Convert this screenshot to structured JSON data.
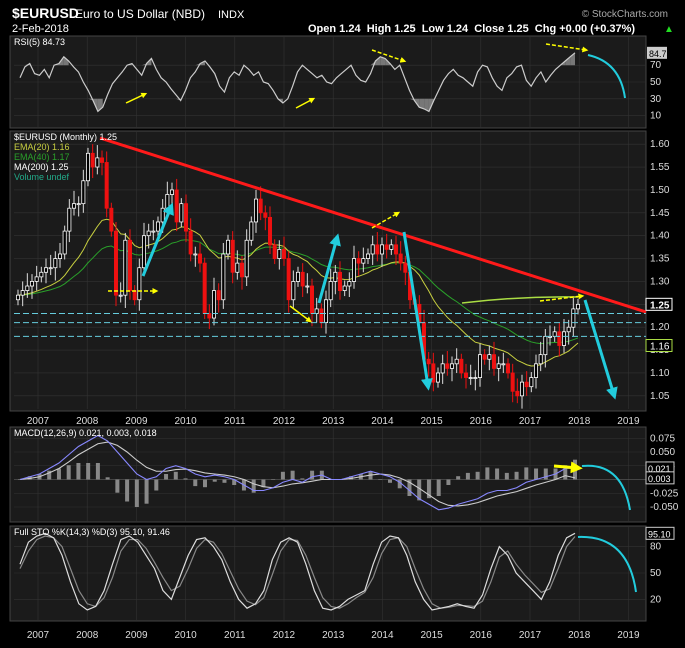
{
  "header": {
    "symbol": "$EURUSD",
    "name": "Euro to US Dollar (NBD)",
    "exchange": "INDX",
    "date": "2-Feb-2018",
    "ohlc": "Open 1.24  High 1.25  Low 1.24  Close 1.25  Chg +0.00 (+0.37%)",
    "chg_symbol": "▲",
    "watermark": "© StockCharts.com"
  },
  "colors": {
    "background": "#000000",
    "panel": "#1b1b1b",
    "grid": "#333333",
    "up_candle": "#ffffff",
    "down_candle": "#ee1111",
    "trendline": "#ff1a1a",
    "arrows_cyan": "#22ccdd",
    "arrows_yellow": "#ffff00",
    "ema20": "#c8d040",
    "ema40": "#2aa02a",
    "rsi": "#cccccc"
  },
  "x_axis": {
    "years": [
      "2007",
      "2008",
      "2009",
      "2010",
      "2011",
      "2012",
      "2013",
      "2014",
      "2015",
      "2016",
      "2017",
      "2018",
      "2019"
    ]
  },
  "chart_data": [
    {
      "type": "line",
      "panel": "rsi",
      "legend": "RSI(5) 84.73",
      "yticks": [
        "70",
        "50",
        "30",
        "10"
      ],
      "last_value_tag": "84.73",
      "ylim": [
        0,
        100
      ],
      "values": [
        55,
        68,
        72,
        60,
        58,
        65,
        55,
        70,
        72,
        80,
        75,
        68,
        62,
        50,
        40,
        28,
        15,
        20,
        35,
        48,
        55,
        62,
        70,
        72,
        65,
        58,
        72,
        78,
        65,
        55,
        50,
        42,
        35,
        28,
        40,
        55,
        62,
        72,
        75,
        68,
        60,
        45,
        38,
        55,
        62,
        58,
        70,
        65,
        58,
        62,
        50,
        48,
        40,
        30,
        25,
        30,
        45,
        62,
        70,
        65,
        60,
        55,
        58,
        50,
        48,
        55,
        60,
        65,
        70,
        58,
        52,
        50,
        60,
        75,
        80,
        78,
        72,
        65,
        70,
        55,
        40,
        28,
        20,
        18,
        15,
        28,
        40,
        52,
        60,
        65,
        58,
        55,
        50,
        45,
        62,
        70,
        68,
        55,
        45,
        40,
        55,
        60,
        68,
        70,
        52,
        45,
        55,
        62,
        50,
        58,
        65,
        70,
        75,
        80,
        84.73
      ]
    },
    {
      "type": "candlestick",
      "panel": "price",
      "legend": [
        "$EURUSD (Monthly) 1.25",
        "EMA(20) 1.16",
        "EMA(40) 1.17",
        "MA(200) 1.25",
        "Volume undef"
      ],
      "yticks": [
        "1.60",
        "1.55",
        "1.50",
        "1.45",
        "1.40",
        "1.35",
        "1.30",
        "1.25",
        "1.20",
        "1.15",
        "1.10",
        "1.05"
      ],
      "ylim": [
        1.03,
        1.62
      ],
      "price_tags": [
        "1.25",
        "1.16"
      ],
      "close": [
        1.27,
        1.28,
        1.29,
        1.3,
        1.31,
        1.32,
        1.33,
        1.33,
        1.35,
        1.36,
        1.41,
        1.46,
        1.47,
        1.47,
        1.52,
        1.58,
        1.55,
        1.57,
        1.56,
        1.46,
        1.41,
        1.27,
        1.27,
        1.39,
        1.28,
        1.26,
        1.33,
        1.4,
        1.41,
        1.41,
        1.43,
        1.46,
        1.49,
        1.5,
        1.43,
        1.47,
        1.41,
        1.36,
        1.36,
        1.34,
        1.23,
        1.22,
        1.28,
        1.26,
        1.36,
        1.39,
        1.32,
        1.34,
        1.31,
        1.39,
        1.43,
        1.48,
        1.45,
        1.44,
        1.38,
        1.35,
        1.37,
        1.35,
        1.26,
        1.3,
        1.32,
        1.29,
        1.29,
        1.23,
        1.24,
        1.21,
        1.26,
        1.3,
        1.32,
        1.28,
        1.29,
        1.3,
        1.35,
        1.34,
        1.35,
        1.36,
        1.38,
        1.36,
        1.38,
        1.37,
        1.38,
        1.36,
        1.34,
        1.32,
        1.26,
        1.25,
        1.21,
        1.13,
        1.12,
        1.08,
        1.1,
        1.12,
        1.11,
        1.12,
        1.13,
        1.1,
        1.09,
        1.09,
        1.09,
        1.14,
        1.13,
        1.14,
        1.11,
        1.12,
        1.12,
        1.1,
        1.06,
        1.05,
        1.08,
        1.07,
        1.09,
        1.12,
        1.14,
        1.18,
        1.18,
        1.19,
        1.16,
        1.19,
        1.2,
        1.24,
        1.25
      ],
      "annotations": {
        "trendline": "resistance line from 2008 high to 2018",
        "support_lines": [
          1.23,
          1.21,
          1.18
        ]
      }
    },
    {
      "type": "line",
      "panel": "macd",
      "legend": "MACD(12,26,9) 0.021, 0.003, 0.018",
      "yticks": [
        "0.075",
        "0.050",
        "0.025",
        "-0.025",
        "-0.050"
      ],
      "value_tags": [
        "0.021",
        "0.003"
      ],
      "ylim": [
        -0.07,
        0.09
      ],
      "series": [
        {
          "name": "MACD",
          "values": [
            0.0,
            0.005,
            0.01,
            0.02,
            0.03,
            0.045,
            0.06,
            0.07,
            0.08,
            0.07,
            0.05,
            0.03,
            0.01,
            0.0,
            0.005,
            0.02,
            0.025,
            0.02,
            0.01,
            0.005,
            0.008,
            0.005,
            0.0,
            -0.01,
            -0.02,
            -0.02,
            -0.015,
            -0.005,
            0.0,
            -0.005,
            0.005,
            0.008,
            0.0,
            0.0,
            0.005,
            0.01,
            0.015,
            0.01,
            0.005,
            -0.005,
            -0.02,
            -0.035,
            -0.045,
            -0.055,
            -0.052,
            -0.045,
            -0.04,
            -0.035,
            -0.025,
            -0.02,
            -0.02,
            -0.015,
            -0.005,
            0.0,
            0.005,
            0.01,
            0.02,
            0.021
          ]
        },
        {
          "name": "Signal",
          "values": [
            0.0,
            0.002,
            0.005,
            0.012,
            0.02,
            0.032,
            0.045,
            0.055,
            0.065,
            0.068,
            0.062,
            0.05,
            0.035,
            0.022,
            0.015,
            0.015,
            0.018,
            0.019,
            0.016,
            0.012,
            0.01,
            0.008,
            0.005,
            0.0,
            -0.008,
            -0.013,
            -0.015,
            -0.012,
            -0.008,
            -0.006,
            -0.003,
            0.0,
            0.0,
            0.0,
            0.002,
            0.005,
            0.008,
            0.01,
            0.008,
            0.003,
            -0.005,
            -0.016,
            -0.028,
            -0.04,
            -0.047,
            -0.048,
            -0.046,
            -0.042,
            -0.036,
            -0.03,
            -0.026,
            -0.022,
            -0.016,
            -0.01,
            -0.005,
            0.0,
            0.007,
            0.003
          ]
        }
      ]
    },
    {
      "type": "line",
      "panel": "stochastic",
      "legend": "Full STO %K(14,3) %D(3) 95.10, 91.46",
      "yticks": [
        "80",
        "50",
        "20"
      ],
      "value_tag": "95.10",
      "ylim": [
        0,
        100
      ],
      "series": [
        {
          "name": "%K",
          "values": [
            60,
            85,
            92,
            95,
            90,
            70,
            40,
            15,
            8,
            12,
            30,
            60,
            88,
            92,
            85,
            70,
            55,
            30,
            20,
            45,
            70,
            88,
            90,
            80,
            65,
            40,
            20,
            10,
            15,
            30,
            65,
            85,
            90,
            85,
            60,
            30,
            10,
            8,
            12,
            20,
            25,
            30,
            60,
            85,
            92,
            90,
            70,
            40,
            20,
            8,
            10,
            12,
            15,
            12,
            10,
            25,
            55,
            80,
            70,
            50,
            40,
            30,
            20,
            40,
            70,
            90,
            95.1
          ]
        },
        {
          "name": "%D",
          "values": [
            55,
            75,
            88,
            92,
            90,
            80,
            55,
            30,
            15,
            12,
            22,
            45,
            75,
            88,
            88,
            78,
            62,
            45,
            30,
            35,
            55,
            78,
            88,
            85,
            72,
            52,
            32,
            18,
            14,
            22,
            48,
            75,
            88,
            87,
            70,
            45,
            22,
            12,
            10,
            15,
            22,
            28,
            45,
            72,
            88,
            90,
            80,
            55,
            32,
            15,
            10,
            11,
            13,
            13,
            12,
            18,
            40,
            68,
            75,
            60,
            48,
            38,
            28,
            32,
            55,
            80,
            91.46
          ]
        }
      ]
    }
  ]
}
